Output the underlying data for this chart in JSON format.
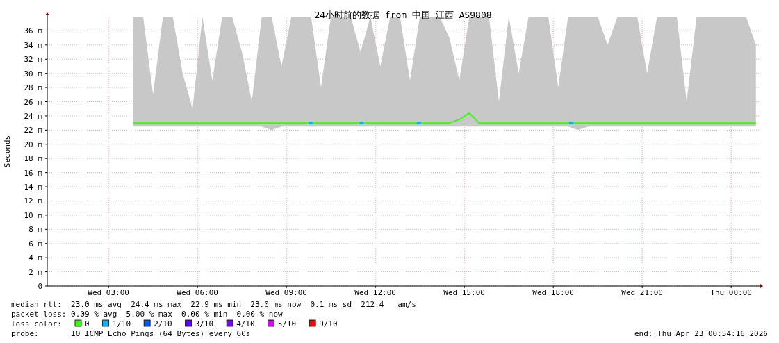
{
  "chart_data": {
    "type": "line",
    "title": "24小时前的数据 from 中国 江西 AS9808",
    "ylabel": "Seconds",
    "legend_title": "loss color:",
    "legend": "bottom",
    "grid": true,
    "xlim": [
      "2026-04-22T00:56",
      "2026-04-23T00:56"
    ],
    "xticks": [
      {
        "value": "2026-04-22T03:00",
        "label": "Wed 03:00"
      },
      {
        "value": "2026-04-22T06:00",
        "label": "Wed 06:00"
      },
      {
        "value": "2026-04-22T09:00",
        "label": "Wed 09:00"
      },
      {
        "value": "2026-04-22T12:00",
        "label": "Wed 12:00"
      },
      {
        "value": "2026-04-22T15:00",
        "label": "Wed 15:00"
      },
      {
        "value": "2026-04-22T18:00",
        "label": "Wed 18:00"
      },
      {
        "value": "2026-04-22T21:00",
        "label": "Wed 21:00"
      },
      {
        "value": "2026-04-23T00:00",
        "label": "Thu 00:00"
      }
    ],
    "ylim": [
      0,
      38
    ],
    "yticks": [
      0,
      {
        "value": 2,
        "label": "2 m"
      },
      {
        "value": 4,
        "label": "4 m"
      },
      {
        "value": 6,
        "label": "6 m"
      },
      {
        "value": 8,
        "label": "8 m"
      },
      {
        "value": 10,
        "label": "10 m"
      },
      {
        "value": 12,
        "label": "12 m"
      },
      {
        "value": 14,
        "label": "14 m"
      },
      {
        "value": 16,
        "label": "16 m"
      },
      {
        "value": 18,
        "label": "18 m"
      },
      {
        "value": 20,
        "label": "20 m"
      },
      {
        "value": 22,
        "label": "22 m"
      },
      {
        "value": 24,
        "label": "24 m"
      },
      {
        "value": 26,
        "label": "26 m"
      },
      {
        "value": 28,
        "label": "28 m"
      },
      {
        "value": 30,
        "label": "30 m"
      },
      {
        "value": 32,
        "label": "32 m"
      },
      {
        "value": 34,
        "label": "34 m"
      },
      {
        "value": 36,
        "label": "36 m"
      }
    ],
    "x": [
      "2026-04-22T03:50",
      "2026-04-22T04:10",
      "2026-04-22T04:30",
      "2026-04-22T04:50",
      "2026-04-22T05:10",
      "2026-04-22T05:30",
      "2026-04-22T05:50",
      "2026-04-22T06:10",
      "2026-04-22T06:30",
      "2026-04-22T06:50",
      "2026-04-22T07:10",
      "2026-04-22T07:30",
      "2026-04-22T07:50",
      "2026-04-22T08:10",
      "2026-04-22T08:30",
      "2026-04-22T08:50",
      "2026-04-22T09:10",
      "2026-04-22T09:30",
      "2026-04-22T09:50",
      "2026-04-22T10:10",
      "2026-04-22T10:30",
      "2026-04-22T10:50",
      "2026-04-22T11:10",
      "2026-04-22T11:30",
      "2026-04-22T11:50",
      "2026-04-22T12:10",
      "2026-04-22T12:30",
      "2026-04-22T12:50",
      "2026-04-22T13:10",
      "2026-04-22T13:30",
      "2026-04-22T13:50",
      "2026-04-22T14:10",
      "2026-04-22T14:30",
      "2026-04-22T14:50",
      "2026-04-22T15:10",
      "2026-04-22T15:30",
      "2026-04-22T15:50",
      "2026-04-22T16:10",
      "2026-04-22T16:30",
      "2026-04-22T16:50",
      "2026-04-22T17:10",
      "2026-04-22T17:30",
      "2026-04-22T17:50",
      "2026-04-22T18:10",
      "2026-04-22T18:30",
      "2026-04-22T18:50",
      "2026-04-22T19:10",
      "2026-04-22T19:30",
      "2026-04-22T19:50",
      "2026-04-22T20:10",
      "2026-04-22T20:30",
      "2026-04-22T20:50",
      "2026-04-22T21:10",
      "2026-04-22T21:30",
      "2026-04-22T21:50",
      "2026-04-22T22:10",
      "2026-04-22T22:30",
      "2026-04-22T22:50",
      "2026-04-22T23:10",
      "2026-04-22T23:30",
      "2026-04-22T23:50",
      "2026-04-23T00:10",
      "2026-04-23T00:30",
      "2026-04-23T00:50"
    ],
    "series": [
      {
        "name": "0",
        "color": "#33ff00",
        "values": [
          23,
          23,
          23,
          23,
          23,
          23,
          23,
          23,
          23,
          23,
          23,
          23,
          23,
          23,
          23,
          23,
          23,
          23,
          23,
          23,
          23,
          23,
          23,
          23,
          23,
          23,
          23,
          23,
          23,
          23,
          23,
          23,
          23,
          23.5,
          24.4,
          23,
          23,
          23,
          23,
          23,
          23,
          23,
          23,
          23,
          23,
          23,
          23,
          23,
          23,
          23,
          23,
          23,
          23,
          23,
          23,
          23,
          23,
          23,
          23,
          23,
          23,
          23,
          23,
          23
        ],
        "lower": [
          22.5,
          22.5,
          22.5,
          22.5,
          22.5,
          22.5,
          22.5,
          22.5,
          22.5,
          22.5,
          22.5,
          22.5,
          22.5,
          22.5,
          22,
          22.5,
          22.5,
          22.5,
          22.5,
          22.5,
          22.5,
          22.5,
          22.5,
          22.5,
          22.5,
          22.5,
          22.5,
          22.5,
          22.5,
          22.5,
          22.5,
          22.5,
          22.5,
          22.5,
          22.5,
          22.5,
          22.5,
          22.5,
          22.5,
          22.5,
          22.5,
          22.5,
          22.5,
          22.5,
          22.5,
          22,
          22.5,
          22.5,
          22.5,
          22.5,
          22.5,
          22.5,
          22.5,
          22.5,
          22.5,
          22.5,
          22.5,
          22.5,
          22.5,
          22.5,
          22.5,
          22.5,
          22.5,
          22.5
        ],
        "upper": [
          38,
          38,
          27,
          38,
          38,
          30,
          25,
          38,
          29,
          38,
          38,
          33,
          26,
          38,
          38,
          31,
          38,
          38,
          38,
          28,
          38,
          38,
          38,
          33,
          38,
          31,
          38,
          38,
          29,
          38,
          38,
          38,
          35,
          29,
          38,
          38,
          38,
          26,
          38,
          30,
          38,
          38,
          38,
          28,
          38,
          38,
          38,
          38,
          34,
          38,
          38,
          38,
          30,
          38,
          38,
          38,
          26,
          38,
          38,
          38,
          38,
          38,
          38,
          34
        ]
      },
      {
        "name": "1/10",
        "type": "scatter",
        "color": "#00b8ff",
        "x": [
          "2026-04-22T09:49",
          "2026-04-22T11:32",
          "2026-04-22T13:28",
          "2026-04-22T18:36"
        ],
        "values": [
          23,
          23,
          23,
          23
        ]
      },
      {
        "name": "2/10",
        "type": "scatter",
        "color": "#0059ff",
        "values": [
          null,
          null,
          null,
          null,
          null,
          null,
          null,
          null,
          null,
          null,
          null,
          null,
          null,
          null,
          null,
          null,
          null,
          null,
          null,
          null,
          null,
          null,
          null,
          null,
          null,
          null,
          null,
          null,
          null,
          null,
          null,
          null,
          null,
          null,
          null,
          null,
          null,
          null,
          null,
          null,
          null,
          null,
          null,
          null,
          null,
          null,
          null,
          null,
          null,
          null,
          null,
          null,
          null,
          null,
          null,
          null,
          null,
          null,
          null,
          null,
          null,
          null,
          null,
          null
        ]
      },
      {
        "name": "3/10",
        "type": "scatter",
        "color": "#5e00ff",
        "values": [
          null,
          null,
          null,
          null,
          null,
          null,
          null,
          null,
          null,
          null,
          null,
          null,
          null,
          null,
          null,
          null,
          null,
          null,
          null,
          null,
          null,
          null,
          null,
          null,
          null,
          null,
          null,
          null,
          null,
          null,
          null,
          null,
          null,
          null,
          null,
          null,
          null,
          null,
          null,
          null,
          null,
          null,
          null,
          null,
          null,
          null,
          null,
          null,
          null,
          null,
          null,
          null,
          null,
          null,
          null,
          null,
          null,
          null,
          null,
          null,
          null,
          null,
          null,
          null
        ]
      },
      {
        "name": "4/10",
        "type": "scatter",
        "color": "#7e00ff",
        "values": [
          null,
          null,
          null,
          null,
          null,
          null,
          null,
          null,
          null,
          null,
          null,
          null,
          null,
          null,
          null,
          null,
          null,
          null,
          null,
          null,
          null,
          null,
          null,
          null,
          null,
          null,
          null,
          null,
          null,
          null,
          null,
          null,
          null,
          null,
          null,
          null,
          null,
          null,
          null,
          null,
          null,
          null,
          null,
          null,
          null,
          null,
          null,
          null,
          null,
          null,
          null,
          null,
          null,
          null,
          null,
          null,
          null,
          null,
          null,
          null,
          null,
          null,
          null,
          null
        ]
      },
      {
        "name": "5/10",
        "type": "scatter",
        "color": "#dd00ff",
        "values": [
          null,
          null,
          null,
          null,
          null,
          null,
          null,
          null,
          null,
          null,
          null,
          null,
          null,
          null,
          null,
          null,
          null,
          null,
          null,
          null,
          null,
          null,
          null,
          null,
          null,
          null,
          null,
          null,
          null,
          null,
          null,
          null,
          null,
          null,
          null,
          null,
          null,
          null,
          null,
          null,
          null,
          null,
          null,
          null,
          null,
          null,
          null,
          null,
          null,
          null,
          null,
          null,
          null,
          null,
          null,
          null,
          null,
          null,
          null,
          null,
          null,
          null,
          null,
          null
        ]
      },
      {
        "name": "9/10",
        "type": "scatter",
        "color": "#ff0000",
        "values": [
          null,
          null,
          null,
          null,
          null,
          null,
          null,
          null,
          null,
          null,
          null,
          null,
          null,
          null,
          null,
          null,
          null,
          null,
          null,
          null,
          null,
          null,
          null,
          null,
          null,
          null,
          null,
          null,
          null,
          null,
          null,
          null,
          null,
          null,
          null,
          null,
          null,
          null,
          null,
          null,
          null,
          null,
          null,
          null,
          null,
          null,
          null,
          null,
          null,
          null,
          null,
          null,
          null,
          null,
          null,
          null,
          null,
          null,
          null,
          null,
          null,
          null,
          null,
          null
        ]
      }
    ],
    "annotations": [
      "median rtt:  23.0 ms avg  24.4 ms max  22.9 ms min  23.0 ms now  0.1 ms sd  212.4   am/s",
      "packet loss: 0.09 % avg  5.00 % max  0.00 % min  0.00 % now",
      "probe:       10 ICMP Echo Pings (64 Bytes) every 60s",
      "end: Thu Apr 23 00:54:16 2026"
    ]
  }
}
